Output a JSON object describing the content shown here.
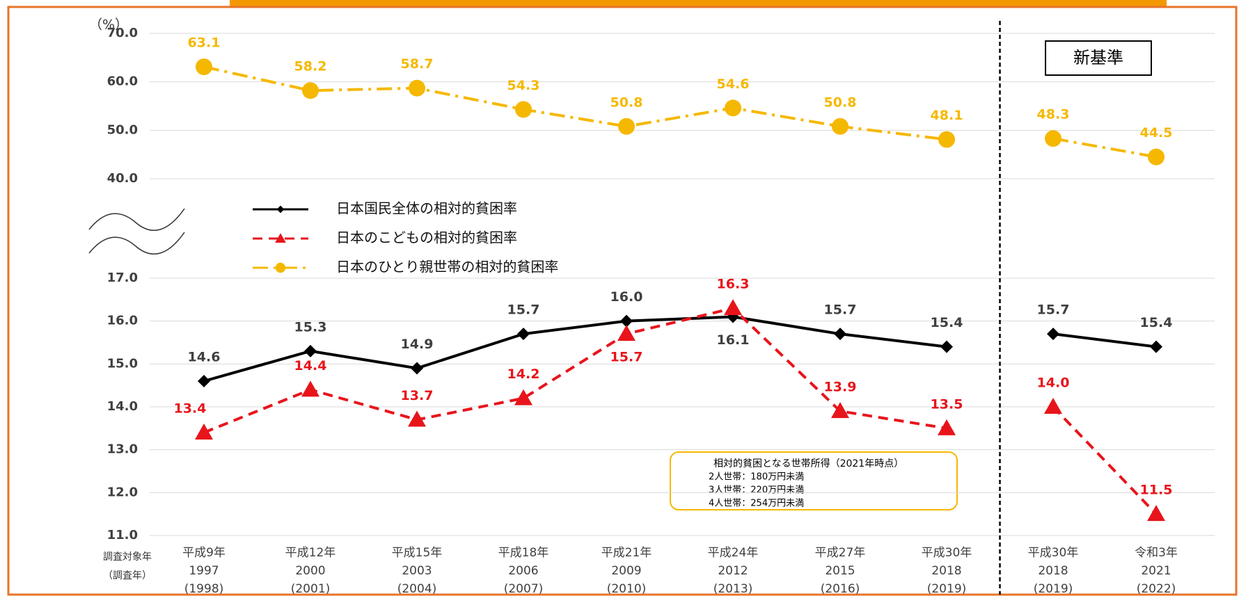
{
  "chart_data": {
    "type": "line",
    "y_label": "（%）",
    "x_label_lines": [
      "調査対象年",
      "（調査年）"
    ],
    "categories": [
      [
        "平成9年",
        "1997",
        "(1998)"
      ],
      [
        "平成12年",
        "2000",
        "(2001)"
      ],
      [
        "平成15年",
        "2003",
        "(2004)"
      ],
      [
        "平成18年",
        "2006",
        "(2007)"
      ],
      [
        "平成21年",
        "2009",
        "(2010)"
      ],
      [
        "平成24年",
        "2012",
        "(2013)"
      ],
      [
        "平成27年",
        "2015",
        "(2016)"
      ],
      [
        "平成30年",
        "2018",
        "(2019)"
      ],
      [
        "平成30年",
        "2018",
        "(2019)"
      ],
      [
        "令和3年",
        "2021",
        "(2022)"
      ]
    ],
    "new_standard_label": "新基準",
    "new_standard_from_index": 8,
    "ylim": [
      40,
      70
    ],
    "yticks": [
      {
        "value": 40,
        "label": "40.0"
      },
      {
        "value": 50,
        "label": "50.0"
      },
      {
        "value": 60,
        "label": "60.0"
      },
      {
        "value": 70,
        "label": "70.0"
      }
    ],
    "y2lim": [
      11,
      17
    ],
    "y2ticks": [
      {
        "value": 11,
        "label": "11.0"
      },
      {
        "value": 12,
        "label": "12.0"
      },
      {
        "value": 13,
        "label": "13.0"
      },
      {
        "value": 14,
        "label": "14.0"
      },
      {
        "value": 15,
        "label": "15.0"
      },
      {
        "value": 16,
        "label": "16.0"
      },
      {
        "value": 17,
        "label": "17.0"
      }
    ],
    "grid": true,
    "series": [
      {
        "name": "日本国民全体の相対的貧困率",
        "color": "#000000",
        "axis": "y2",
        "marker": "diamond",
        "dash": "solid",
        "values": [
          14.6,
          15.3,
          14.9,
          15.7,
          16.0,
          16.1,
          15.7,
          15.4,
          15.7,
          15.4
        ],
        "value_labels": [
          "14.6",
          "15.3",
          "14.9",
          "15.7",
          "16.0",
          "16.1",
          "15.7",
          "15.4",
          "15.7",
          "15.4"
        ]
      },
      {
        "name": "日本のこどもの相対的貧困率",
        "color": "#e8141b",
        "axis": "y2",
        "marker": "triangle",
        "dash": "dashed",
        "values": [
          13.4,
          14.4,
          13.7,
          14.2,
          15.7,
          16.3,
          13.9,
          13.5,
          14.0,
          11.5
        ],
        "value_labels": [
          "13.4",
          "14.4",
          "13.7",
          "14.2",
          "15.7",
          "16.3",
          "13.9",
          "13.5",
          "14.0",
          "11.5"
        ]
      },
      {
        "name": "日本のひとり親世帯の相対的貧困率",
        "color": "#f5b800",
        "axis": "y",
        "marker": "circle",
        "dash": "dashdot",
        "values": [
          63.1,
          58.2,
          58.7,
          54.3,
          50.8,
          54.6,
          50.8,
          48.1,
          48.3,
          44.5
        ],
        "value_labels": [
          "63.1",
          "58.2",
          "58.7",
          "54.3",
          "50.8",
          "54.6",
          "50.8",
          "48.1",
          "48.3",
          "44.5"
        ]
      }
    ],
    "annotation_lines": [
      "相対的貧困となる世帯所得（2021年時点）",
      "2人世帯：180万円未満",
      "3人世帯：220万円未満",
      "4人世帯：254万円未満"
    ]
  }
}
